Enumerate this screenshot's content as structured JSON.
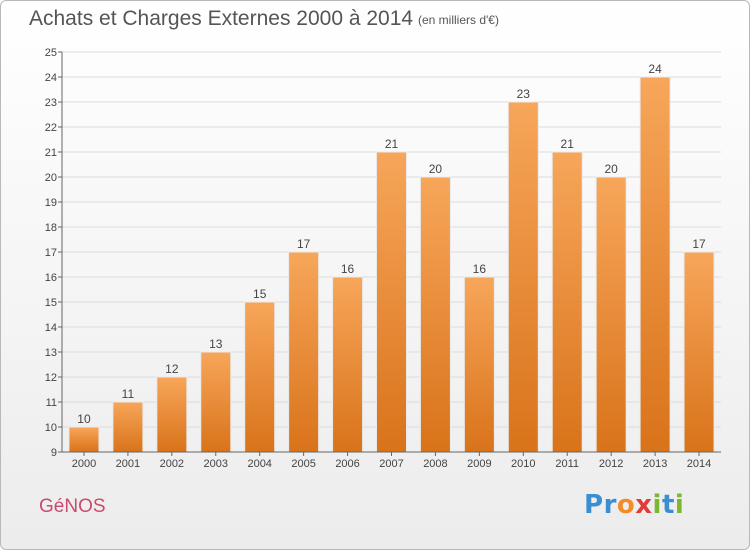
{
  "header": {
    "title": "Achats et Charges Externes 2000 à 2014",
    "subtitle": "(en milliers d'€)"
  },
  "footer": {
    "commune": "GéNOS",
    "logo_letters": [
      {
        "char": "P",
        "color": "#3a8fd1"
      },
      {
        "char": "r",
        "color": "#3a8fd1"
      },
      {
        "char": "o",
        "color": "#f28c28"
      },
      {
        "char": "x",
        "color": "#e23b3b"
      },
      {
        "char": "i",
        "color": "#7cb82f"
      },
      {
        "char": "t",
        "color": "#3a8fd1"
      },
      {
        "char": "i",
        "color": "#7cb82f"
      }
    ]
  },
  "colors": {
    "bar_light": "#f7a65a",
    "bar_dark": "#d9731a",
    "axis": "#666666",
    "grid": "#dcdcdc",
    "label": "#444444"
  },
  "chart_data": {
    "type": "bar",
    "categories": [
      "2000",
      "2001",
      "2002",
      "2003",
      "2004",
      "2005",
      "2006",
      "2007",
      "2008",
      "2009",
      "2010",
      "2011",
      "2012",
      "2013",
      "2014"
    ],
    "values": [
      10,
      11,
      12,
      13,
      15,
      17,
      16,
      21,
      20,
      16,
      23,
      21,
      20,
      24,
      17
    ],
    "ylim": [
      9,
      25
    ],
    "yticks": [
      9,
      10,
      11,
      12,
      13,
      14,
      15,
      16,
      17,
      18,
      19,
      20,
      21,
      22,
      23,
      24,
      25
    ],
    "grid": true,
    "data_labels": true
  }
}
